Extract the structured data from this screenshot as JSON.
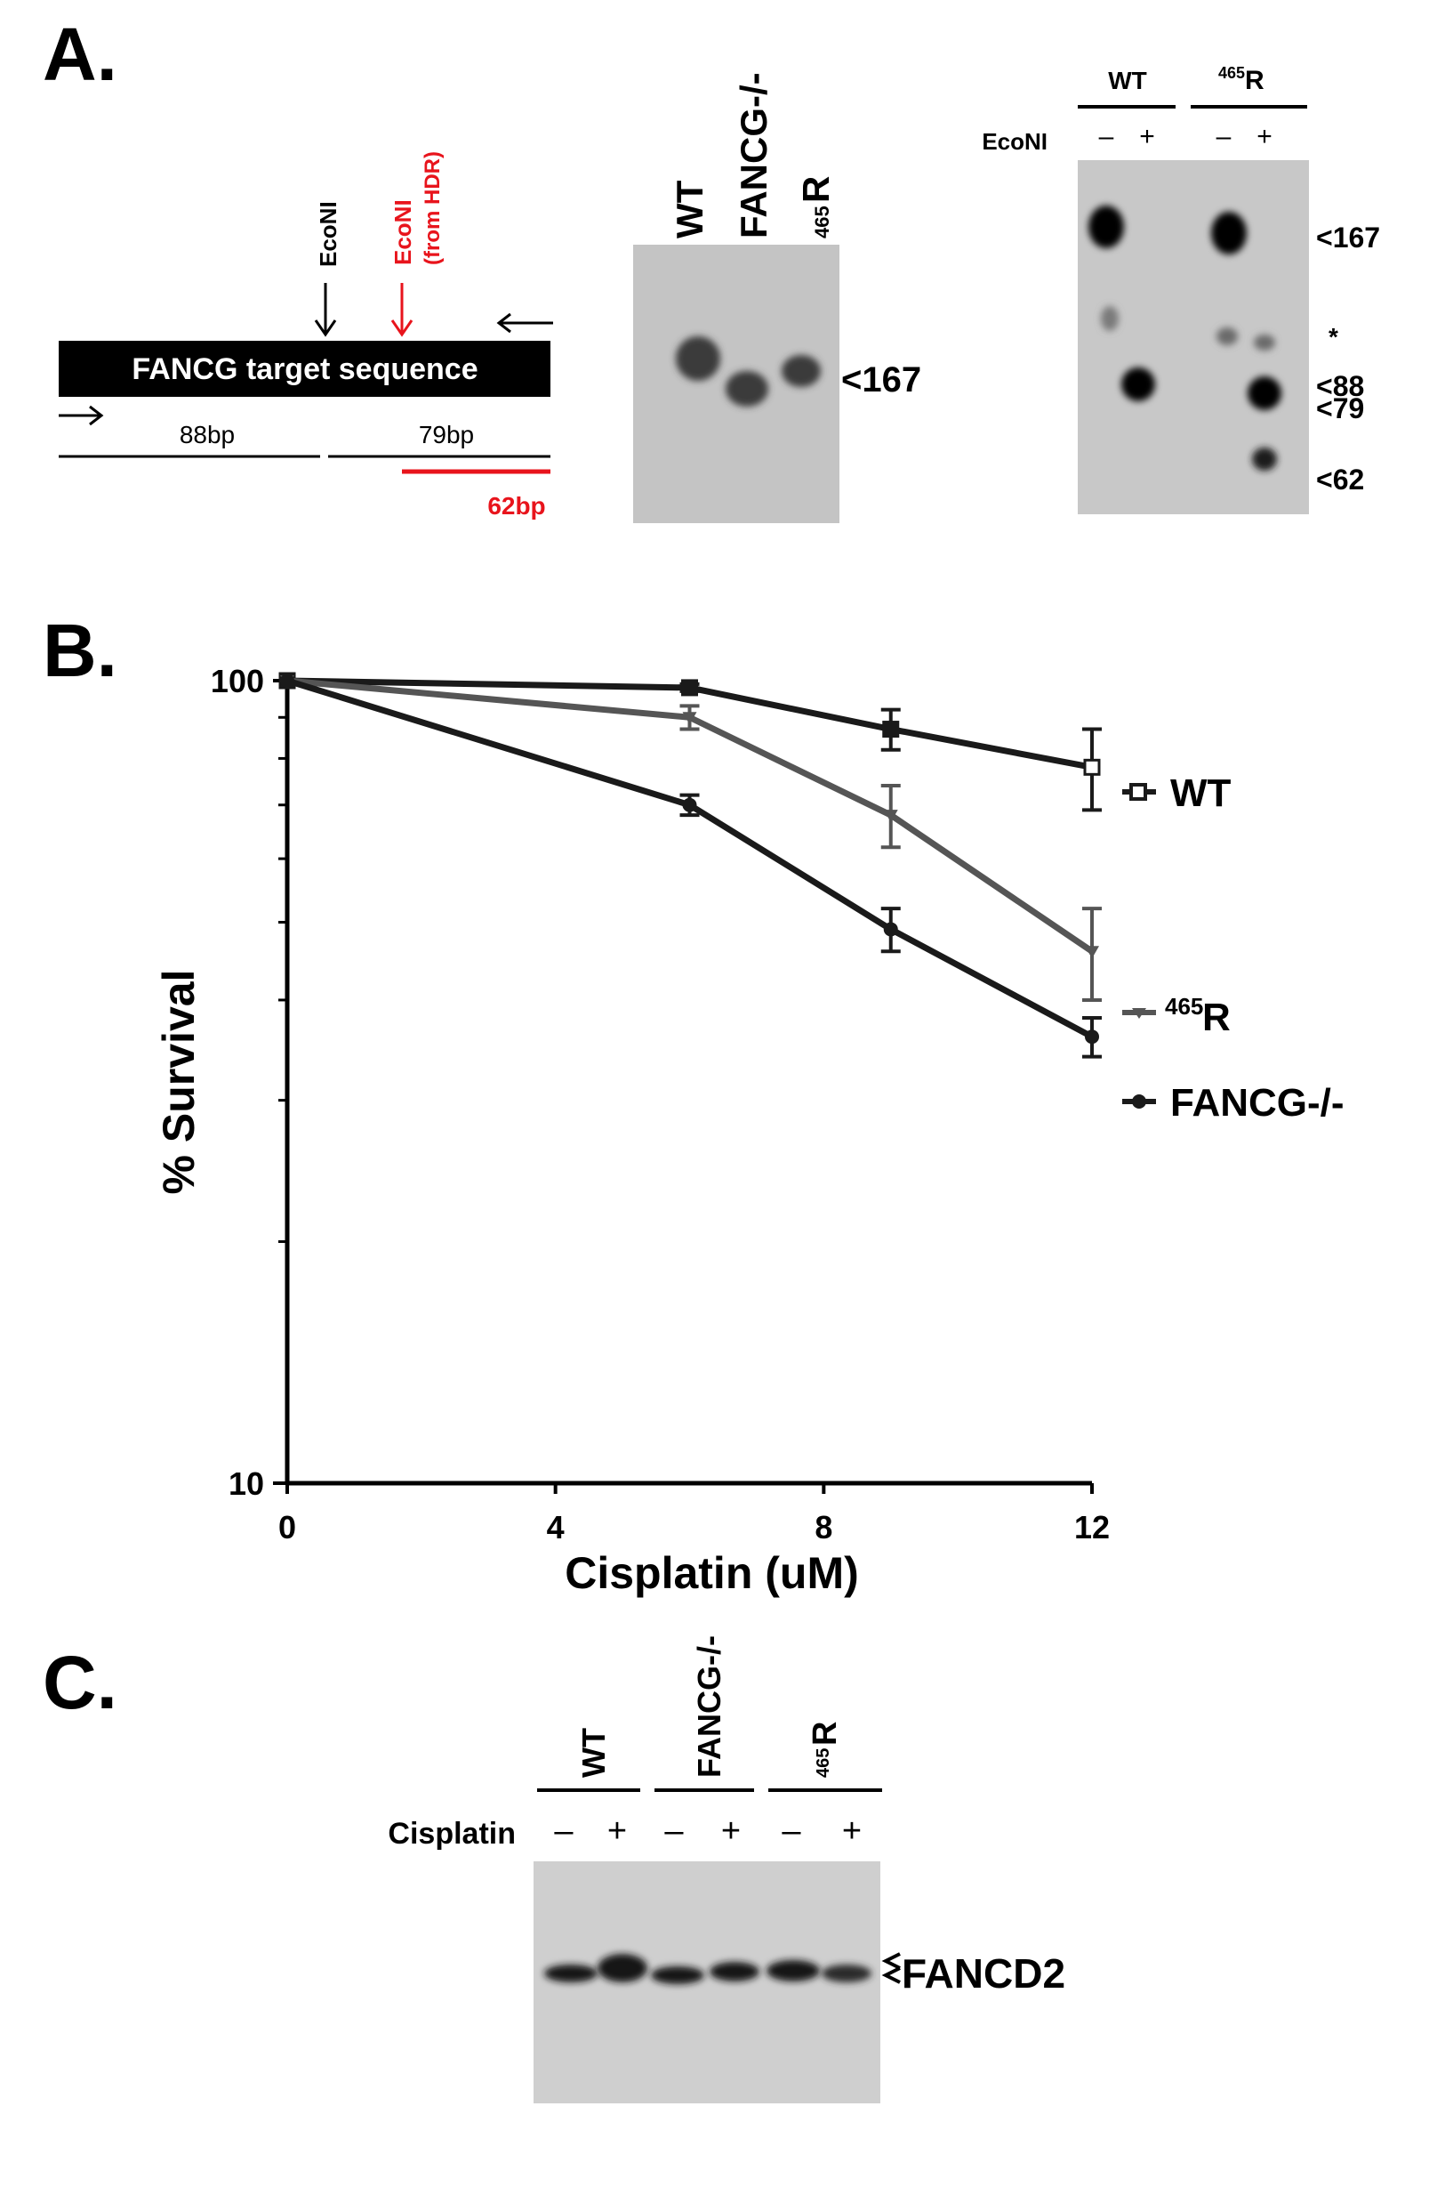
{
  "panel_a": {
    "label": "A.",
    "diagram": {
      "box_text": "FANCG target sequence",
      "site1": "EcoNI",
      "site2_line1": "EcoNI",
      "site2_line2": "(from HDR)",
      "frag1": "88bp",
      "frag2": "79bp",
      "frag3": "62bp"
    },
    "gel1": {
      "lanes": [
        "WT",
        "FANCG-/-",
        "R"
      ],
      "lane3_sup": "465",
      "marker": "<167"
    },
    "gel2": {
      "group1": "WT",
      "group2_sup": "465",
      "group2": "R",
      "row_label": "EcoNI",
      "signs": [
        "–",
        "+",
        "–",
        "+"
      ],
      "markers": [
        "<167",
        "*",
        "<88",
        "<79",
        "<62"
      ]
    }
  },
  "panel_b": {
    "label": "B.",
    "chart_data": {
      "type": "line",
      "xlabel": "Cisplatin (uM)",
      "ylabel": "% Survival",
      "y_scale": "log",
      "xlim": [
        0,
        12
      ],
      "ylim": [
        10,
        100
      ],
      "x_ticks": [
        0,
        4,
        8,
        12
      ],
      "y_ticks": [
        10,
        100
      ],
      "y_tick_labels": [
        "10",
        "100"
      ],
      "x": [
        0,
        6,
        9,
        12
      ],
      "series": [
        {
          "name": "WT",
          "values": [
            100,
            98,
            87,
            78
          ],
          "errors": [
            0,
            1,
            5,
            9
          ],
          "color": "#1a1a1a",
          "marker": "square"
        },
        {
          "name": "R",
          "name_sup": "465",
          "values": [
            100,
            90,
            68,
            46
          ],
          "errors": [
            0,
            3,
            6,
            6
          ],
          "color": "#555555",
          "marker": "triangle"
        },
        {
          "name": "FANCG-/-",
          "values": [
            100,
            70,
            49,
            36
          ],
          "errors": [
            0,
            2,
            3,
            2
          ],
          "color": "#1a1a1a",
          "marker": "circle"
        }
      ]
    }
  },
  "panel_c": {
    "label": "C.",
    "lanes": [
      "WT",
      "FANCG-/-",
      "R"
    ],
    "lane3_sup": "465",
    "row_label": "Cisplatin",
    "signs": [
      "–",
      "+",
      "–",
      "+",
      "–",
      "+"
    ],
    "marker": "FANCD2"
  }
}
